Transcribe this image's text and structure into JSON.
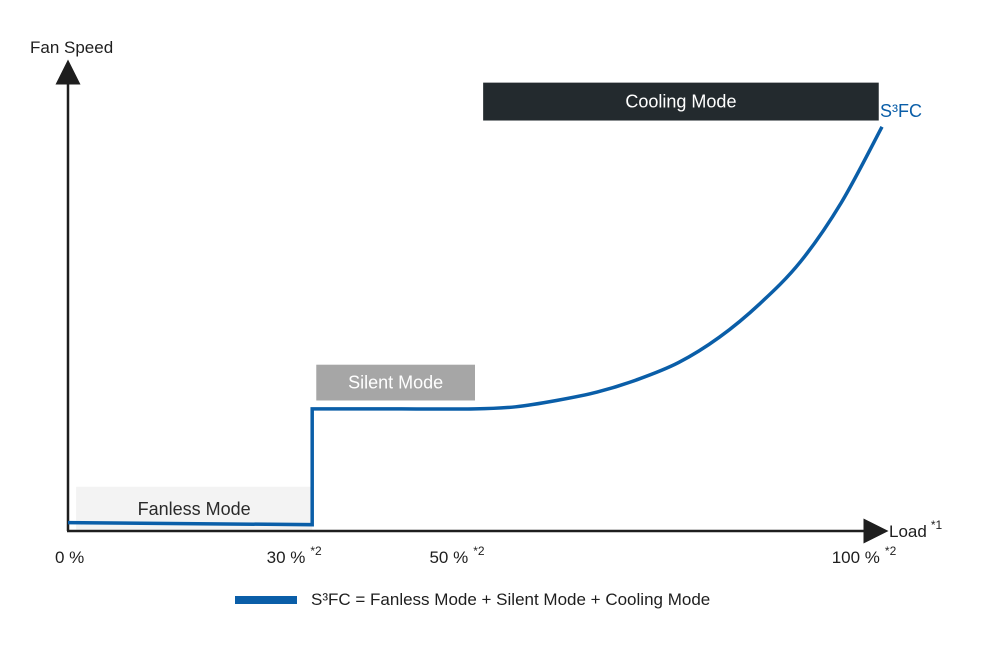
{
  "chart_data": {
    "type": "line",
    "ylabel": "Fan Speed",
    "xlabel": "Load",
    "xlabel_note": "*1",
    "x_ticks": [
      {
        "value": 0,
        "label": "0 %",
        "note": ""
      },
      {
        "value": 30,
        "label": "30 %",
        "note": "*2"
      },
      {
        "value": 50,
        "label": "50 %",
        "note": "*2"
      },
      {
        "value": 100,
        "label": "100 %",
        "note": "*2"
      }
    ],
    "xlim": [
      0,
      100
    ],
    "ylim": [
      0,
      1
    ],
    "series": [
      {
        "name": "S³FC",
        "color": "#0a5ea8",
        "points": [
          [
            0,
            0.02
          ],
          [
            30,
            0.015
          ],
          [
            30,
            0.29
          ],
          [
            41,
            0.29
          ],
          [
            50,
            0.29
          ],
          [
            55,
            0.295
          ],
          [
            60,
            0.31
          ],
          [
            65,
            0.33
          ],
          [
            70,
            0.36
          ],
          [
            75,
            0.4
          ],
          [
            80,
            0.46
          ],
          [
            85,
            0.54
          ],
          [
            90,
            0.64
          ],
          [
            95,
            0.78
          ],
          [
            100,
            0.96
          ]
        ]
      }
    ],
    "modes": [
      {
        "label": "Fanless Mode",
        "x0": 1,
        "x1": 30,
        "y0": 0.0,
        "y1": 0.105,
        "bg": "#f3f3f3",
        "fg": "#2a2a2a"
      },
      {
        "label": "Silent Mode",
        "x0": 30.5,
        "x1": 50,
        "y0": 0.31,
        "y1": 0.395,
        "bg": "#a6a6a6",
        "fg": "#ffffff"
      },
      {
        "label": "Cooling Mode",
        "x0": 51,
        "x1": 99.6,
        "y0": 0.975,
        "y1": 1.065,
        "bg": "#232a2e",
        "fg": "#ffffff"
      }
    ],
    "legend": {
      "text": "S³FC = Fanless Mode + Silent Mode + Cooling Mode",
      "position": "bottom-center"
    },
    "grid": false
  }
}
